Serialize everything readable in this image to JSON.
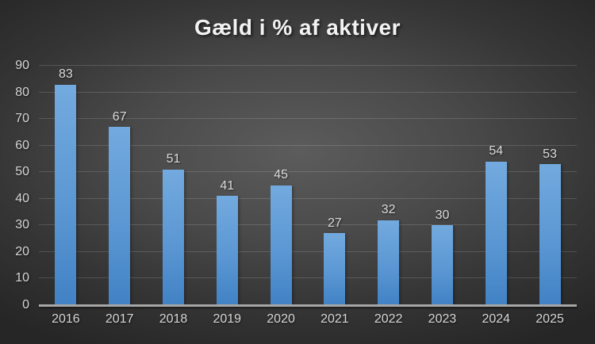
{
  "chart_data": {
    "type": "bar",
    "title": "Gæld i % af aktiver",
    "categories": [
      "2016",
      "2017",
      "2018",
      "2019",
      "2020",
      "2021",
      "2022",
      "2023",
      "2024",
      "2025"
    ],
    "values": [
      83,
      67,
      51,
      41,
      45,
      27,
      32,
      30,
      54,
      53
    ],
    "xlabel": "",
    "ylabel": "",
    "ylim": [
      0,
      90
    ],
    "yticks": [
      0,
      10,
      20,
      30,
      40,
      50,
      60,
      70,
      80,
      90
    ],
    "grid": true,
    "legend": false,
    "data_labels": true,
    "colors": {
      "bar_top": "#73AADF",
      "bar_bottom": "#4182C5",
      "gridline": "rgba(255,255,255,0.15)",
      "axis_line": "#A6A6A6",
      "tick_label": "#D6D6D6",
      "data_label": "#DADADA",
      "title": "#F2F2F2",
      "background_center": "#5C5C5C",
      "background_edge": "#262626"
    }
  }
}
